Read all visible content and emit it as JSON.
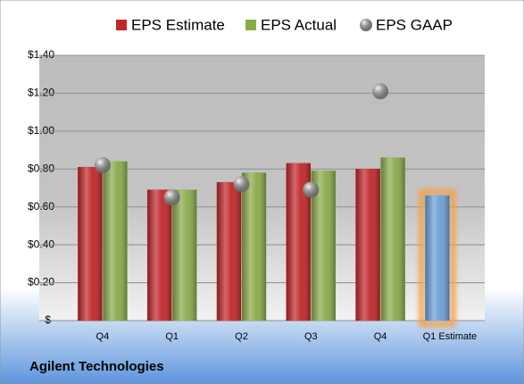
{
  "chart_data": {
    "type": "bar",
    "categories": [
      "Q4",
      "Q1",
      "Q2",
      "Q3",
      "Q4",
      "Q1 Estimate"
    ],
    "series": [
      {
        "name": "EPS Estimate",
        "color": "#c0262a",
        "values": [
          0.81,
          0.69,
          0.73,
          0.83,
          0.8,
          0.66
        ],
        "point_colors": [
          "#c0262a",
          "#c0262a",
          "#c0262a",
          "#c0262a",
          "#c0262a",
          "#6a9fd6"
        ],
        "highlight_color": "#f5a04a"
      },
      {
        "name": "EPS Actual",
        "color": "#8aaa4a",
        "values": [
          0.84,
          0.69,
          0.78,
          0.79,
          0.86,
          null
        ]
      },
      {
        "name": "EPS GAAP",
        "type": "scatter",
        "color": "#a8a8a8",
        "values": [
          0.82,
          0.65,
          0.72,
          0.69,
          1.21,
          null
        ]
      }
    ],
    "ylim": [
      0,
      1.4
    ],
    "yticks": [
      {
        "value": 0,
        "label": "$-"
      },
      {
        "value": 0.2,
        "label": "$0.20"
      },
      {
        "value": 0.4,
        "label": "$0.40"
      },
      {
        "value": 0.6,
        "label": "$0.60"
      },
      {
        "value": 0.8,
        "label": "$0.80"
      },
      {
        "value": 1.0,
        "label": "$1.00"
      },
      {
        "value": 1.2,
        "label": "$1.20"
      },
      {
        "value": 1.4,
        "label": "$1.40"
      }
    ],
    "grid": true,
    "footnote": "Agilent Technologies"
  }
}
